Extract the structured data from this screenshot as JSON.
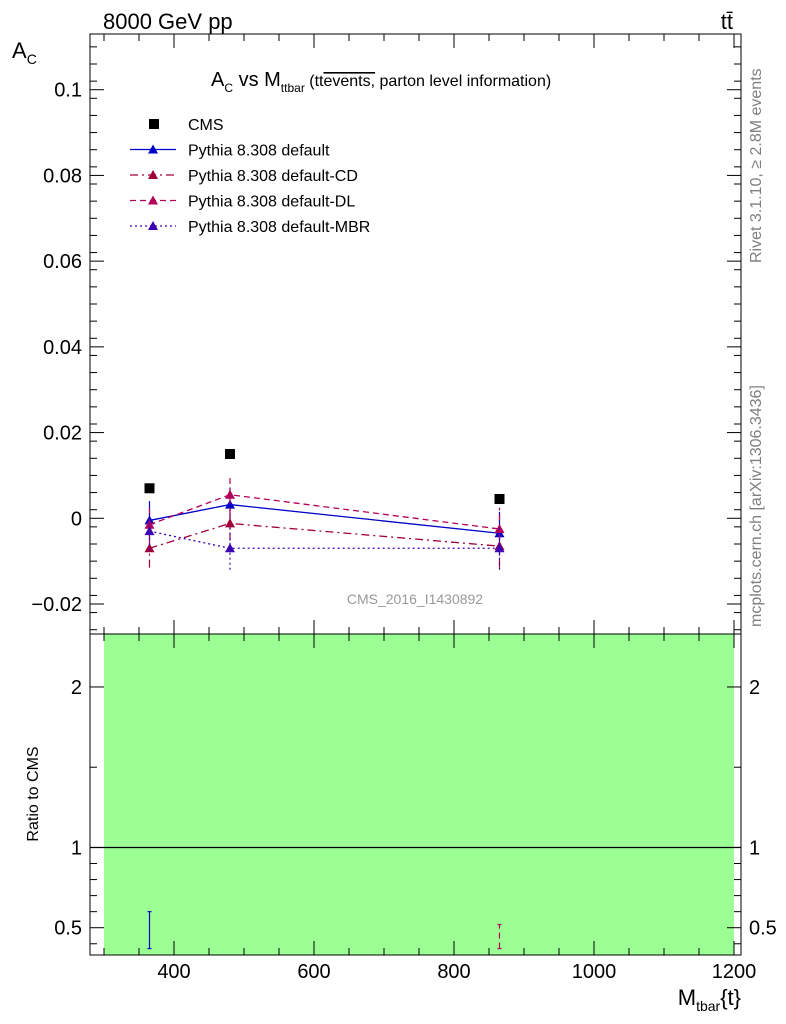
{
  "header": {
    "energy_label": "8000 GeV pp",
    "process_label": "tt̄"
  },
  "side_labels": {
    "rivet": "Rivet 3.1.10, ≥ 2.8M events",
    "source": "mcplots.cern.ch [arXiv:1306.3436]"
  },
  "colors": {
    "ratio_band": "#9cff94",
    "cms": "#000000",
    "default": "#0000c8",
    "default_cd": "#a0003c",
    "default_dl": "#b4005a",
    "default_mbr": "#3c00b4"
  },
  "chart_data": [
    {
      "type": "line",
      "title_parts": {
        "prefix": "A",
        "prefix_sub": "C",
        "middle": " vs M",
        "middle_sub": "ttbar",
        "paren_open": " (tt",
        "overlined": "events,",
        "suffix": " parton level information)"
      },
      "ylabel": "A",
      "ylabel_sub": "C",
      "xlim": [
        280,
        1210
      ],
      "ylim": [
        -0.027,
        0.113
      ],
      "yticks": [
        -0.02,
        0,
        0.02,
        0.04,
        0.06,
        0.08,
        0.1
      ],
      "ytick_labels": [
        "−0.02",
        "0",
        "0.02",
        "0.04",
        "0.06",
        "0.08",
        "0.1"
      ],
      "analysis_label": "CMS_2016_I1430892",
      "series": [
        {
          "name": "CMS",
          "style": "square",
          "x": [
            365,
            480,
            865
          ],
          "y": [
            0.007,
            0.015,
            0.0045
          ],
          "err": [
            0,
            0,
            0
          ]
        },
        {
          "name": "Pythia 8.308 default",
          "style": "solid",
          "x": [
            365,
            480,
            865
          ],
          "y": [
            -0.0005,
            0.0032,
            -0.0035
          ],
          "err": [
            0.0045,
            0.004,
            0.005
          ]
        },
        {
          "name": "Pythia 8.308 default-CD",
          "style": "dashdot",
          "x": [
            365,
            480,
            865
          ],
          "y": [
            -0.007,
            -0.0012,
            -0.0065
          ],
          "err": [
            0.0045,
            0.004,
            0.005
          ]
        },
        {
          "name": "Pythia 8.308 default-DL",
          "style": "dashed",
          "x": [
            365,
            480,
            865
          ],
          "y": [
            -0.0015,
            0.0055,
            -0.0025
          ],
          "err": [
            0.0045,
            0.0045,
            0.005
          ]
        },
        {
          "name": "Pythia 8.308 default-MBR",
          "style": "dotted",
          "x": [
            365,
            480,
            865
          ],
          "y": [
            -0.003,
            -0.007,
            -0.007
          ],
          "err": [
            0.0045,
            0.005,
            0.005
          ]
        }
      ]
    },
    {
      "type": "line",
      "ylabel": "Ratio to CMS",
      "xlabel": "M",
      "xlabel_sub": "tbar",
      "xlabel_suffix": "{t}",
      "xlim": [
        280,
        1210
      ],
      "ylim": [
        0.33,
        2.33
      ],
      "xticks": [
        400,
        600,
        800,
        1000,
        1200
      ],
      "xtick_labels": [
        "400",
        "600",
        "800",
        "1000",
        "1200"
      ],
      "yticks": [
        0.5,
        1,
        2
      ],
      "ytick_labels": [
        "0.5",
        "1",
        "2"
      ],
      "band": {
        "x": [
          300,
          1200
        ],
        "y": [
          0.33,
          2.33
        ]
      },
      "reference_y": 1,
      "error_bars": [
        {
          "series": "Pythia 8.308 default",
          "x": 365,
          "y_low": 0.37,
          "y_high": 0.6
        },
        {
          "series": "Pythia 8.308 default-DL",
          "x": 865,
          "y_low": 0.37,
          "y_high": 0.52
        }
      ]
    }
  ]
}
